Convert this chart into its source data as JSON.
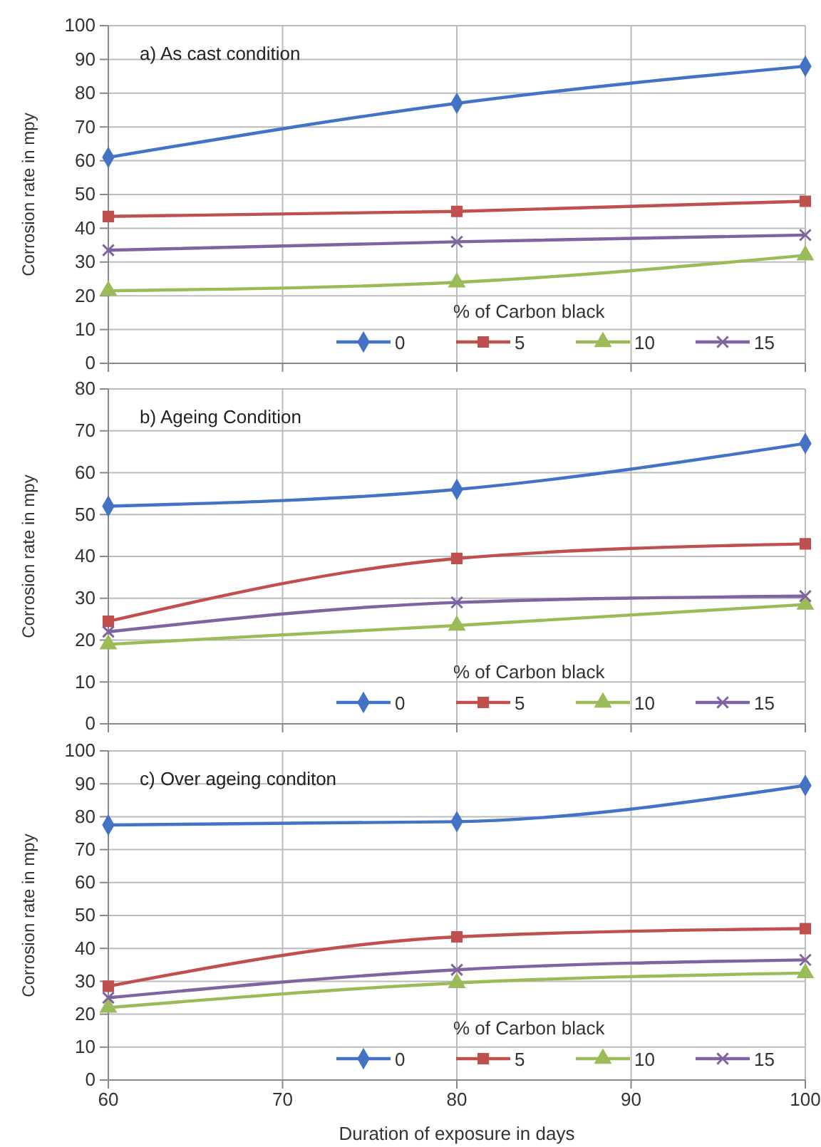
{
  "chart_data": [
    {
      "type": "line",
      "title": "a) As cast condition",
      "ylabel": "Corrosion rate in mpy",
      "legend_title": "% of Carbon black",
      "x": [
        60,
        80,
        100
      ],
      "xlim": [
        60,
        100
      ],
      "xticks": [
        60,
        70,
        80,
        90,
        100
      ],
      "ylim": [
        0,
        100
      ],
      "yticks": [
        0,
        10,
        20,
        30,
        40,
        50,
        60,
        70,
        80,
        90,
        100
      ],
      "grid": true,
      "legend": "bottom right",
      "tick_labels": "y",
      "series": [
        {
          "name": "0",
          "color": "#4472c4",
          "marker": "diamond",
          "values": [
            61,
            77,
            88
          ]
        },
        {
          "name": "5",
          "color": "#c0504d",
          "marker": "square",
          "values": [
            43.5,
            45,
            48
          ]
        },
        {
          "name": "10",
          "color": "#9bbb59",
          "marker": "triangle",
          "values": [
            21.5,
            24,
            32
          ]
        },
        {
          "name": "15",
          "color": "#8064a2",
          "marker": "cross",
          "values": [
            33.5,
            36,
            38
          ]
        }
      ]
    },
    {
      "type": "line",
      "title": "b) Ageing Condition",
      "ylabel": "Corrosion rate in mpy",
      "legend_title": "% of Carbon black",
      "x": [
        60,
        80,
        100
      ],
      "xlim": [
        60,
        100
      ],
      "xticks": [
        60,
        70,
        80,
        90,
        100
      ],
      "ylim": [
        0,
        80
      ],
      "yticks": [
        0,
        10,
        20,
        30,
        40,
        50,
        60,
        70,
        80
      ],
      "grid": true,
      "legend": "bottom right",
      "tick_labels": "y",
      "series": [
        {
          "name": "0",
          "color": "#4472c4",
          "marker": "diamond",
          "values": [
            52,
            56,
            67
          ]
        },
        {
          "name": "5",
          "color": "#c0504d",
          "marker": "square",
          "values": [
            24.5,
            39.5,
            43
          ]
        },
        {
          "name": "10",
          "color": "#9bbb59",
          "marker": "triangle",
          "values": [
            19,
            23.5,
            28.5
          ]
        },
        {
          "name": "15",
          "color": "#8064a2",
          "marker": "cross",
          "values": [
            22,
            29,
            30.5
          ]
        }
      ]
    },
    {
      "type": "line",
      "title": "c) Over ageing conditon",
      "xlabel": "Duration of exposure in days",
      "ylabel": "Corrosion rate in mpy",
      "legend_title": "% of Carbon black",
      "x": [
        60,
        80,
        100
      ],
      "xlim": [
        60,
        100
      ],
      "xticks": [
        60,
        70,
        80,
        90,
        100
      ],
      "ylim": [
        0,
        100
      ],
      "yticks": [
        0,
        10,
        20,
        30,
        40,
        50,
        60,
        70,
        80,
        90,
        100
      ],
      "grid": true,
      "legend": "bottom right",
      "series": [
        {
          "name": "0",
          "color": "#4472c4",
          "marker": "diamond",
          "values": [
            77.5,
            78.5,
            89.5
          ]
        },
        {
          "name": "5",
          "color": "#c0504d",
          "marker": "square",
          "values": [
            28.5,
            43.5,
            46
          ]
        },
        {
          "name": "10",
          "color": "#9bbb59",
          "marker": "triangle",
          "values": [
            22,
            29.5,
            32.5
          ]
        },
        {
          "name": "15",
          "color": "#8064a2",
          "marker": "cross",
          "values": [
            25,
            33.5,
            36.5
          ]
        }
      ]
    }
  ]
}
